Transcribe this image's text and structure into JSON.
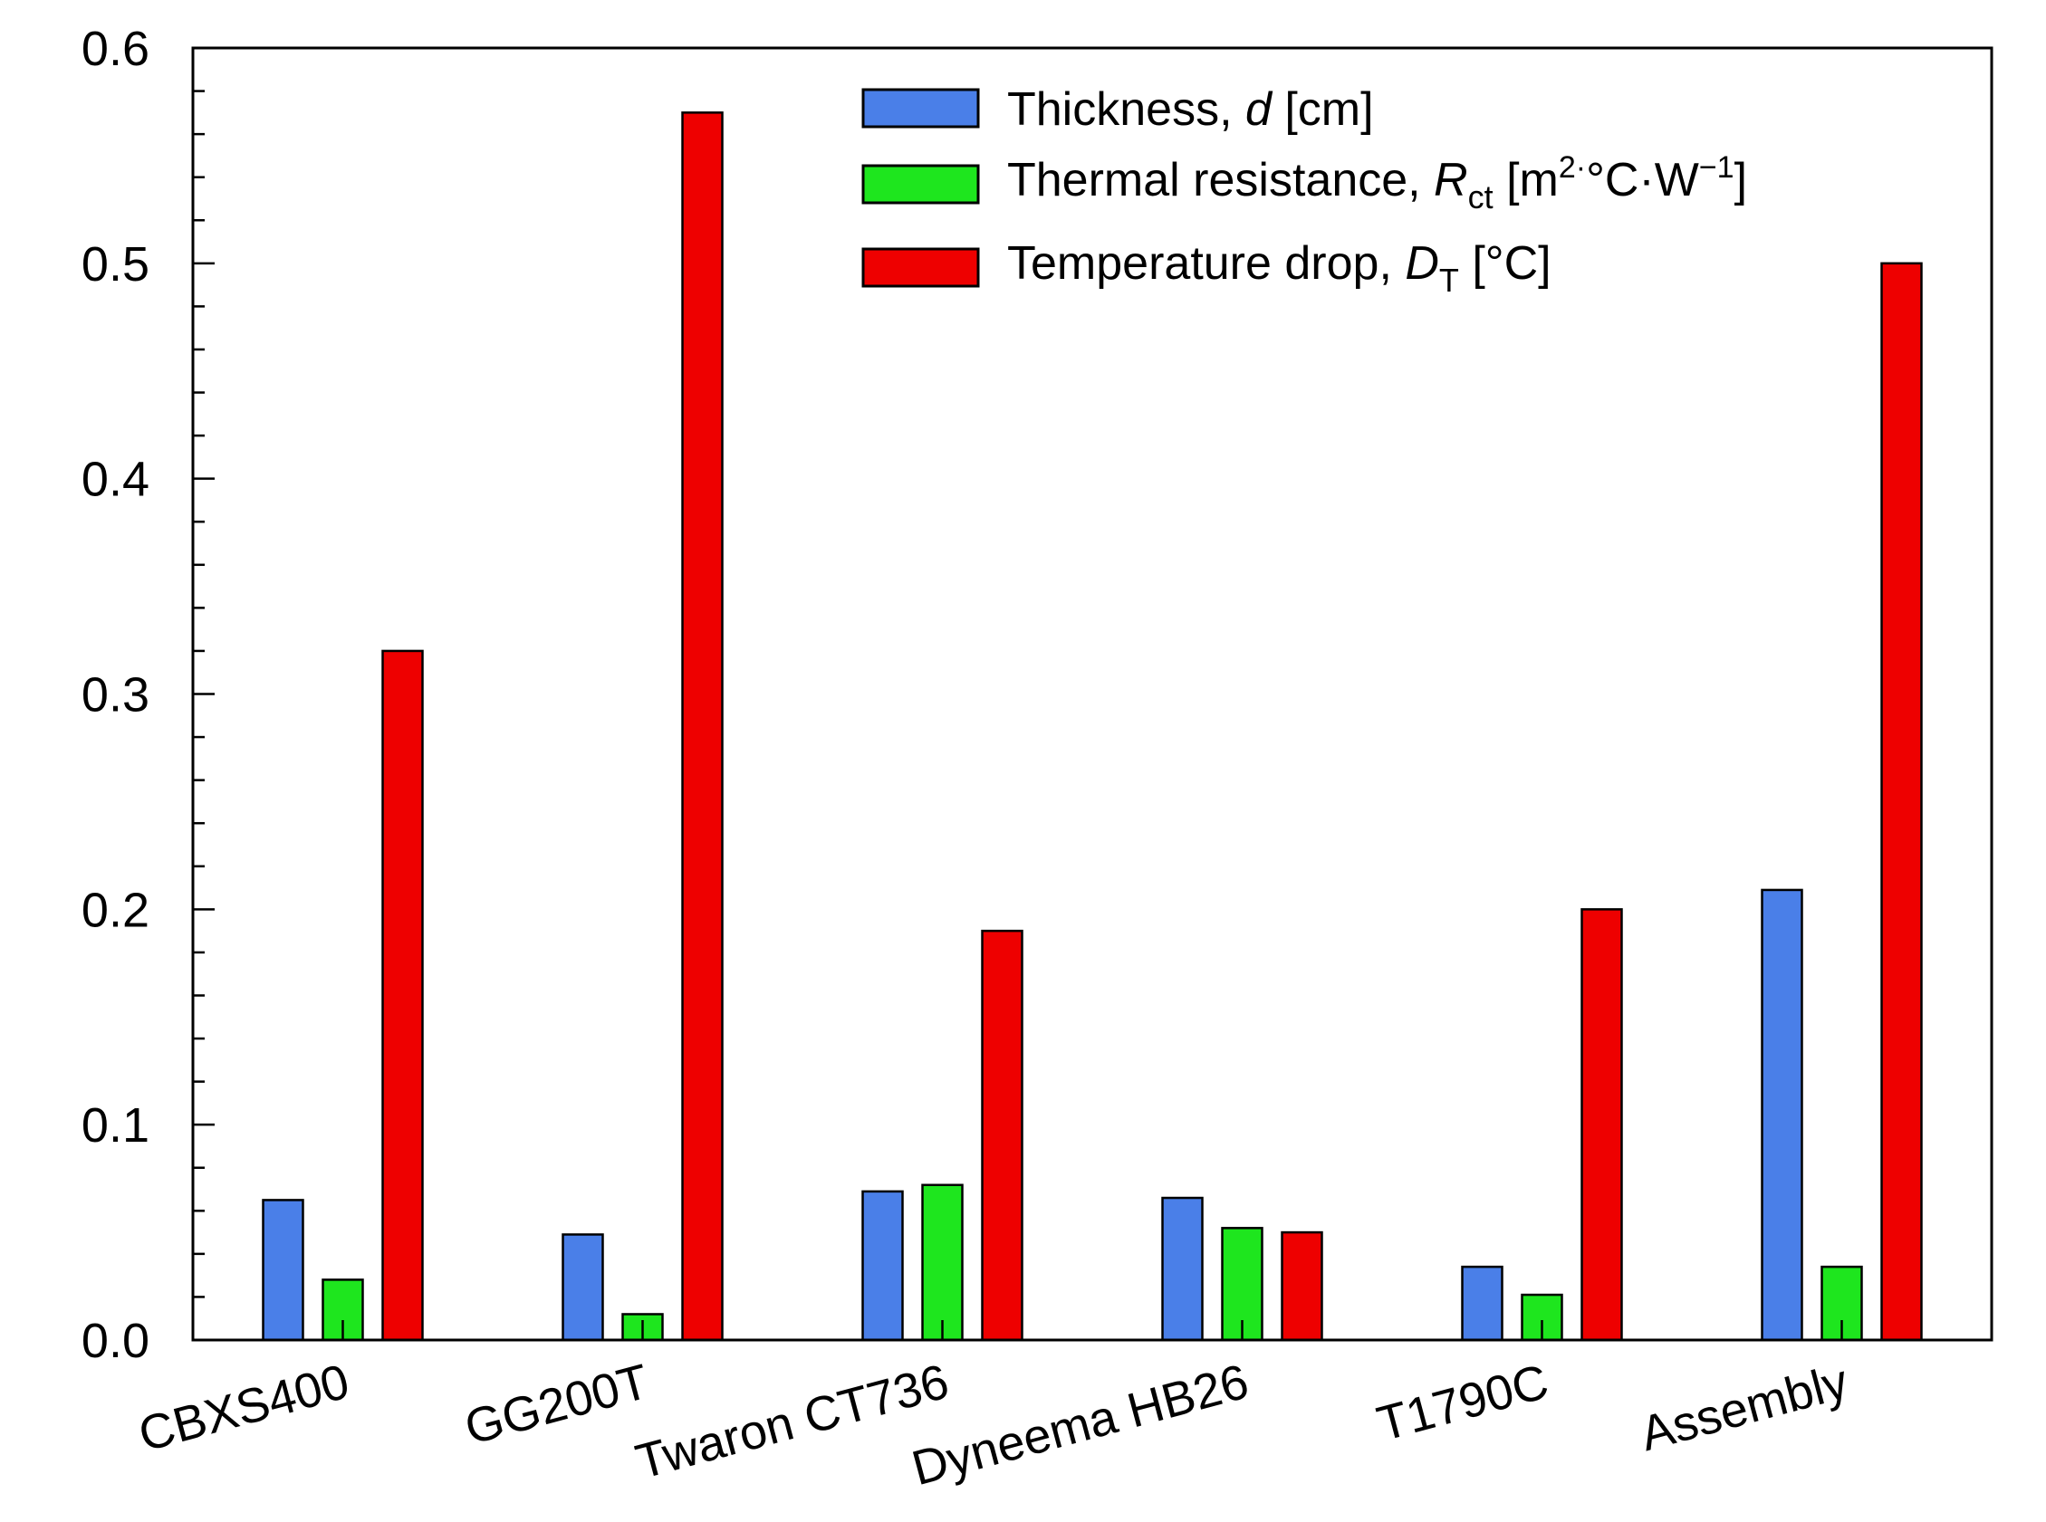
{
  "chart_data": {
    "type": "bar",
    "title": "",
    "xlabel": "",
    "ylabel": "",
    "ylim": [
      0,
      0.6
    ],
    "yticks": [
      "0.0",
      "0.1",
      "0.2",
      "0.3",
      "0.4",
      "0.5",
      "0.6"
    ],
    "grid": false,
    "legend_position": "top-right",
    "categories": [
      "CBXS400",
      "GG200T",
      "Twaron CT736",
      "Dyneema HB26",
      "T1790C",
      "Assembly"
    ],
    "series": [
      {
        "name": "Thickness, d [cm]",
        "legend_parts": {
          "prefix": "Thickness, ",
          "symbol": "d",
          "suffix": " [cm]"
        },
        "color": "#4a7fe8",
        "values": [
          0.065,
          0.049,
          0.069,
          0.066,
          0.034,
          0.209
        ]
      },
      {
        "name": "Thermal resistance, Rct [m2·°C·W−1]",
        "legend_parts": {
          "prefix": "Thermal resistance, ",
          "symbol": "R",
          "sub": "ct",
          "unit_open": " [m",
          "sup1": "2·",
          "unit_mid": "°C·W",
          "sup2": "−1",
          "unit_close": "]"
        },
        "color": "#1ee61e",
        "values": [
          0.028,
          0.012,
          0.072,
          0.052,
          0.021,
          0.034
        ]
      },
      {
        "name": "Temperature drop, DT [°C]",
        "legend_parts": {
          "prefix": "Temperature drop, ",
          "symbol": "D",
          "sub": "T",
          "suffix": " [°C]"
        },
        "color": "#ee0000",
        "values": [
          0.32,
          0.57,
          0.19,
          0.05,
          0.2,
          0.5
        ]
      }
    ]
  }
}
